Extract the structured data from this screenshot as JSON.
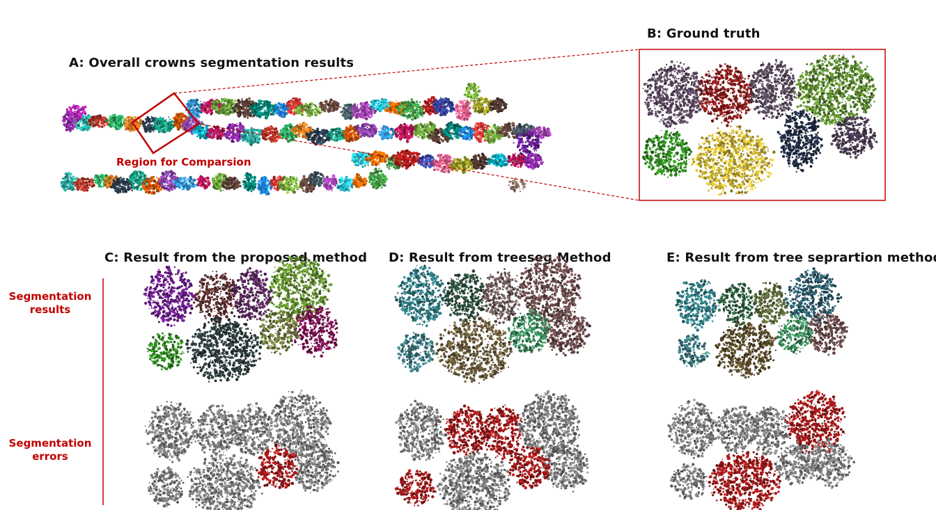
{
  "panels": {
    "a_title": "A: Overall crowns segmentation results",
    "b_title": "B: Ground truth",
    "c_title": "C: Result from the proposed method",
    "d_title": "D: Result from treeseg Method",
    "e_title": "E: Result from tree seprartion method"
  },
  "region_label": "Region for Comparsion",
  "row_labels": {
    "results_line1": "Segmentation",
    "results_line2": "results",
    "errors_line1": "Segmentation",
    "errors_line2": "errors"
  },
  "colors": {
    "accent_red": "#c00000",
    "error_gray": "#7a7a7a",
    "error_red": "#a01818"
  }
}
